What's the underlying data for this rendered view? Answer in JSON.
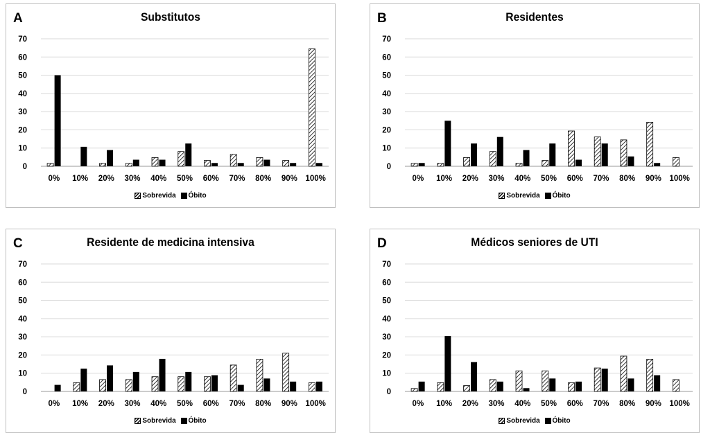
{
  "chart_data": [
    {
      "type": "bar",
      "panel_letter": "A",
      "title": "Substitutos",
      "categories": [
        "0%",
        "10%",
        "20%",
        "30%",
        "40%",
        "50%",
        "60%",
        "70%",
        "80%",
        "90%",
        "100%"
      ],
      "series": [
        {
          "name": "Sobrevida",
          "values": [
            1.6,
            0,
            1.6,
            1.6,
            4.8,
            8.1,
            3.2,
            6.5,
            4.8,
            3.2,
            64.5
          ],
          "color": "#ffffff",
          "pattern": "diagonal-hatch"
        },
        {
          "name": "Óbito",
          "values": [
            50,
            10.7,
            8.9,
            3.6,
            3.6,
            12.5,
            1.8,
            1.8,
            3.6,
            1.8,
            1.8
          ],
          "color": "#000000",
          "pattern": "solid"
        }
      ],
      "yticks": [
        "0",
        "10",
        "20",
        "30",
        "40",
        "50",
        "60",
        "70"
      ],
      "ylim": [
        0,
        70
      ],
      "grid": true,
      "legend_position": "bottom"
    },
    {
      "type": "bar",
      "panel_letter": "B",
      "title": "Residentes",
      "categories": [
        "0%",
        "10%",
        "20%",
        "30%",
        "40%",
        "50%",
        "60%",
        "70%",
        "80%",
        "90%",
        "100%"
      ],
      "series": [
        {
          "name": "Sobrevida",
          "values": [
            1.6,
            1.6,
            4.8,
            8.1,
            1.6,
            3.2,
            19.4,
            16.1,
            14.5,
            24.2,
            4.8
          ],
          "color": "#ffffff",
          "pattern": "diagonal-hatch"
        },
        {
          "name": "Óbito",
          "values": [
            1.8,
            25,
            12.5,
            16.1,
            8.9,
            12.5,
            3.6,
            12.5,
            5.4,
            1.8,
            0
          ],
          "color": "#000000",
          "pattern": "solid"
        }
      ],
      "yticks": [
        "0",
        "10",
        "20",
        "30",
        "40",
        "50",
        "60",
        "70"
      ],
      "ylim": [
        0,
        70
      ],
      "grid": true,
      "legend_position": "bottom"
    },
    {
      "type": "bar",
      "panel_letter": "C",
      "title": "Residente de medicina intensiva",
      "categories": [
        "0%",
        "10%",
        "20%",
        "30%",
        "40%",
        "50%",
        "60%",
        "70%",
        "80%",
        "90%",
        "100%"
      ],
      "series": [
        {
          "name": "Sobrevida",
          "values": [
            0,
            4.8,
            6.5,
            6.5,
            8.1,
            8.1,
            8.1,
            14.5,
            17.7,
            21,
            4.8
          ],
          "color": "#ffffff",
          "pattern": "diagonal-hatch"
        },
        {
          "name": "Óbito",
          "values": [
            3.6,
            12.5,
            14.3,
            10.7,
            17.9,
            10.7,
            8.9,
            3.6,
            7.1,
            5.4,
            5.4
          ],
          "color": "#000000",
          "pattern": "solid"
        }
      ],
      "yticks": [
        "0",
        "10",
        "20",
        "30",
        "40",
        "50",
        "60",
        "70"
      ],
      "ylim": [
        0,
        70
      ],
      "grid": true,
      "legend_position": "bottom"
    },
    {
      "type": "bar",
      "panel_letter": "D",
      "title": "Médicos seniores de UTI",
      "categories": [
        "0%",
        "10%",
        "20%",
        "30%",
        "40%",
        "50%",
        "60%",
        "70%",
        "80%",
        "90%",
        "100%"
      ],
      "series": [
        {
          "name": "Sobrevida",
          "values": [
            1.6,
            4.8,
            3.2,
            6.5,
            11.3,
            11.3,
            4.8,
            12.9,
            19.4,
            17.7,
            6.5
          ],
          "color": "#ffffff",
          "pattern": "diagonal-hatch"
        },
        {
          "name": "Óbito",
          "values": [
            5.4,
            30.4,
            16.1,
            5.4,
            1.8,
            7.1,
            5.4,
            12.5,
            7.1,
            8.9,
            0
          ],
          "color": "#000000",
          "pattern": "solid"
        }
      ],
      "yticks": [
        "0",
        "10",
        "20",
        "30",
        "40",
        "50",
        "60",
        "70"
      ],
      "ylim": [
        0,
        70
      ],
      "grid": true,
      "legend_position": "bottom"
    }
  ],
  "legend": {
    "sobrevida_label": "Sobrevida",
    "obito_label": "Óbito"
  }
}
